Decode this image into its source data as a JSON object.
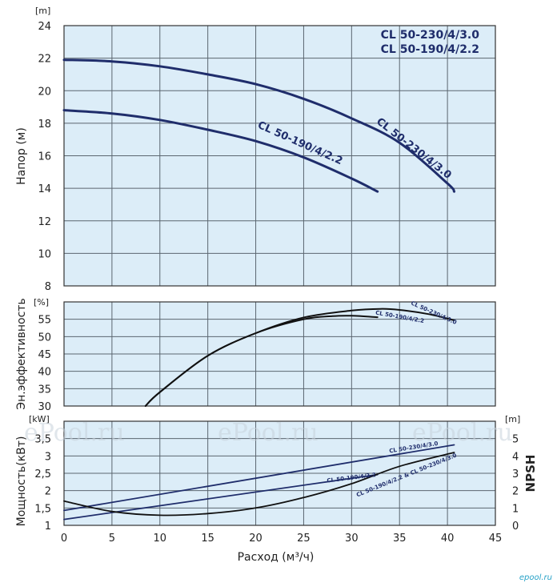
{
  "chart_data": [
    {
      "type": "line",
      "panel": "head",
      "ylabel": "Напор (м)",
      "yunit": "[m]",
      "ylim": [
        8,
        24
      ],
      "yticks": [
        8,
        10,
        12,
        14,
        16,
        18,
        20,
        22,
        24
      ],
      "xlim": [
        0,
        45
      ],
      "grid": true,
      "legend": [
        "CL 50-230/4/3.0",
        "CL 50-190/4/2.2"
      ],
      "legend_position": "top-right",
      "series": [
        {
          "name": "CL 50-230/4/3.0",
          "x": [
            0,
            5,
            10,
            15,
            20,
            25,
            30,
            35,
            40,
            40.7
          ],
          "y": [
            21.9,
            21.8,
            21.5,
            21.0,
            20.4,
            19.5,
            18.3,
            16.8,
            14.3,
            13.8
          ]
        },
        {
          "name": "CL 50-190/4/2.2",
          "x": [
            0,
            5,
            10,
            15,
            20,
            25,
            30,
            32.7
          ],
          "y": [
            18.8,
            18.6,
            18.2,
            17.6,
            16.9,
            15.9,
            14.6,
            13.8
          ]
        }
      ]
    },
    {
      "type": "line",
      "panel": "efficiency",
      "ylabel": "Эн.эффективность",
      "yunit": "[%]",
      "ylim": [
        30,
        60
      ],
      "yticks": [
        30,
        35,
        40,
        45,
        50,
        55
      ],
      "xlim": [
        0,
        45
      ],
      "grid": true,
      "series": [
        {
          "name": "CL 50-230/4/3.0",
          "x": [
            8.5,
            10,
            15,
            20,
            25,
            30,
            33,
            35,
            38,
            40.7
          ],
          "y": [
            30,
            34,
            44.5,
            51,
            55.5,
            57.5,
            58,
            57.7,
            56.5,
            54.7
          ]
        },
        {
          "name": "CL 50-190/4/2.2",
          "x": [
            8.5,
            10,
            15,
            20,
            25,
            28,
            30,
            32.7
          ],
          "y": [
            30,
            34,
            44.5,
            51,
            55,
            55.9,
            56,
            55.6
          ]
        }
      ]
    },
    {
      "type": "line",
      "panel": "power_npsh",
      "xlabel": "Расход (м³/ч)",
      "ylabel": "Мощность(кВт)",
      "yunit": "[kW]",
      "ylim": [
        1,
        4
      ],
      "yticks": [
        1,
        1.5,
        2,
        2.5,
        3,
        3.5
      ],
      "ytick_labels": [
        "1",
        "1,5",
        "2",
        "2,5",
        "3",
        "3,5"
      ],
      "y2label": "NPSH",
      "y2unit": "[m]",
      "y2lim": [
        0,
        6
      ],
      "y2ticks": [
        0,
        1,
        2,
        3,
        4,
        5
      ],
      "xlim": [
        0,
        45
      ],
      "xticks": [
        0,
        5,
        10,
        15,
        20,
        25,
        30,
        35,
        40,
        45
      ],
      "grid": true,
      "series": [
        {
          "name": "CL 50-230/4/3.0",
          "axis": "power",
          "x": [
            0,
            40.7
          ],
          "y": [
            1.43,
            3.32
          ]
        },
        {
          "name": "CL 50-190/4/2.2",
          "axis": "power",
          "x": [
            0,
            32.7
          ],
          "y": [
            1.17,
            2.46
          ]
        },
        {
          "name": "CL 50-190/4/2.2 & CL 50-230/4/3.0",
          "axis": "npsh",
          "x": [
            0,
            5,
            10,
            15,
            20,
            25,
            30,
            35,
            40.7
          ],
          "y": [
            1.4,
            0.8,
            0.58,
            0.68,
            1.0,
            1.6,
            2.4,
            3.4,
            4.2
          ]
        }
      ]
    }
  ],
  "watermarks": [
    "ePool.ru",
    "ePool.ru",
    "ePool.ru"
  ],
  "brand": "epool.ru"
}
